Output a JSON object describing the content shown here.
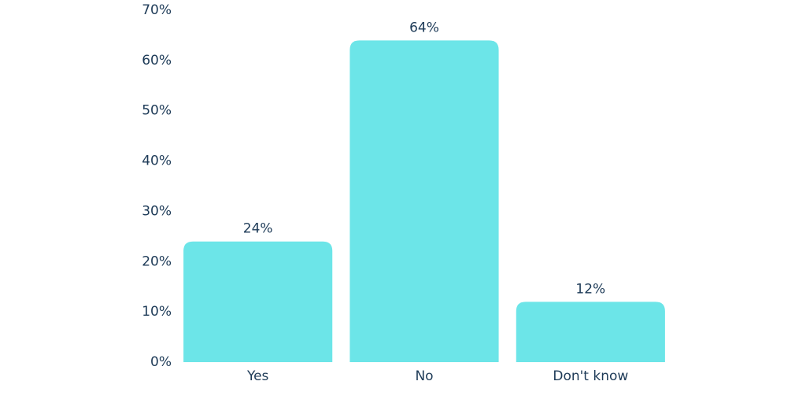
{
  "chart_data": {
    "type": "bar",
    "categories": [
      "Yes",
      "No",
      "Don't know"
    ],
    "values": [
      24,
      64,
      12
    ],
    "value_labels": [
      "24%",
      "64%",
      "12%"
    ],
    "color": "#6ce5e8",
    "ylim": [
      0,
      70
    ],
    "yticks": [
      {
        "value": 0,
        "label": "0%"
      },
      {
        "value": 10,
        "label": "10%"
      },
      {
        "value": 20,
        "label": "20%"
      },
      {
        "value": 30,
        "label": "30%"
      },
      {
        "value": 40,
        "label": "40%"
      },
      {
        "value": 50,
        "label": "50%"
      },
      {
        "value": 60,
        "label": "60%"
      },
      {
        "value": 70,
        "label": "70%"
      }
    ],
    "grid": false
  }
}
